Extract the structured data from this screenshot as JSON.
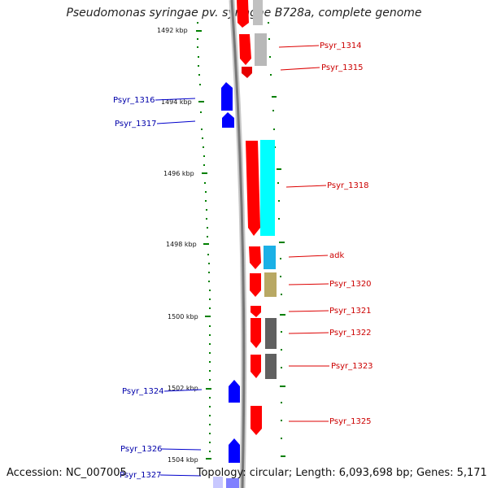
{
  "title": "Pseudomonas syringae pv. syringae B728a, complete genome",
  "footer": {
    "accession": "Accession: NC_007005",
    "topology": "Topology: circular; Length: 6,093,698 bp; Genes: 5,171"
  },
  "axis": {
    "ticks": [
      "1492 kbp",
      "1494 kbp",
      "1496 kbp",
      "1498 kbp",
      "1500 kbp",
      "1502 kbp",
      "1504 kbp"
    ]
  },
  "genes": {
    "left": [
      "Psyr_1316",
      "Psyr_1317",
      "Psyr_1324",
      "Psyr_1326",
      "Psyr_1327"
    ],
    "right": [
      "Psyr_1314",
      "Psyr_1315",
      "Psyr_1318",
      "adk",
      "Psyr_1320",
      "Psyr_1321",
      "Psyr_1322",
      "Psyr_1323",
      "Psyr_1325"
    ]
  },
  "colors": {
    "forward": "#ff0000",
    "reverse": "#0000ff",
    "cyan": "#00ffff",
    "lightblue": "#1ab0e6",
    "khaki": "#b8a864",
    "gray": "#606060",
    "lightgray": "#c0c0c0",
    "tick": "#008000"
  }
}
